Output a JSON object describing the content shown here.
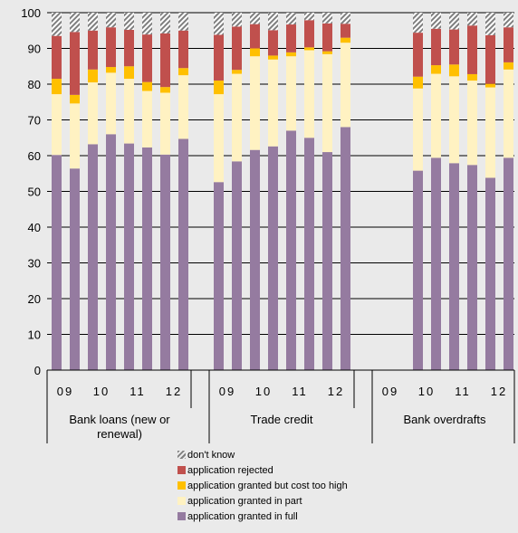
{
  "chart_data": {
    "type": "bar",
    "stacked": true,
    "ylim": [
      0,
      100
    ],
    "yticks": [
      0,
      10,
      20,
      30,
      40,
      50,
      60,
      70,
      80,
      90,
      100
    ],
    "grid": true,
    "legend_position": "bottom",
    "groups": [
      {
        "name": "Bank loans (new or renewal)",
        "name_lines": [
          "Bank loans (new or",
          "renewal)"
        ],
        "year_labels": [
          "09",
          "10",
          "11",
          "12"
        ],
        "bars": [
          [
            60.2,
            17.0,
            4.3,
            12.0,
            6.5
          ],
          [
            56.4,
            18.2,
            2.4,
            17.6,
            5.4
          ],
          [
            63.2,
            17.3,
            3.6,
            10.9,
            5.0
          ],
          [
            66.0,
            17.2,
            1.6,
            11.1,
            4.1
          ],
          [
            63.4,
            18.1,
            3.5,
            10.2,
            4.8
          ],
          [
            62.3,
            15.8,
            2.5,
            13.3,
            6.1
          ],
          [
            60.3,
            17.3,
            1.6,
            15.0,
            5.8
          ],
          [
            64.7,
            17.8,
            2.0,
            10.5,
            5.0
          ]
        ]
      },
      {
        "name": "Trade credit",
        "name_lines": [
          "Trade credit"
        ],
        "year_labels": [
          "09",
          "10",
          "11",
          "12"
        ],
        "bars": [
          [
            52.6,
            24.6,
            3.8,
            12.8,
            6.2
          ],
          [
            58.4,
            24.5,
            1.1,
            12.1,
            3.9
          ],
          [
            61.6,
            26.2,
            2.2,
            6.8,
            3.2
          ],
          [
            62.6,
            24.3,
            1.1,
            7.1,
            4.9
          ],
          [
            67.0,
            20.8,
            1.1,
            7.8,
            3.3
          ],
          [
            65.0,
            24.5,
            0.8,
            7.6,
            2.1
          ],
          [
            61.0,
            27.4,
            0.8,
            7.8,
            3.0
          ],
          [
            68.0,
            23.6,
            1.4,
            3.9,
            3.1
          ]
        ]
      },
      {
        "name": "Bank overdrafts",
        "name_lines": [
          "Bank overdrafts"
        ],
        "year_labels": [
          "09",
          "10",
          "11",
          "12"
        ],
        "bars": [
          null,
          null,
          [
            55.8,
            23.0,
            3.3,
            12.3,
            5.6
          ],
          [
            59.4,
            23.5,
            2.4,
            10.2,
            4.5
          ],
          [
            57.9,
            24.3,
            3.3,
            9.8,
            4.7
          ],
          [
            57.4,
            23.6,
            1.8,
            13.6,
            3.6
          ],
          [
            53.8,
            25.3,
            1.0,
            13.6,
            6.3
          ],
          [
            59.4,
            24.7,
            2.0,
            9.8,
            4.1
          ]
        ]
      }
    ],
    "series": [
      {
        "name": "application granted in full",
        "color": "#957ba0"
      },
      {
        "name": "application granted in part",
        "color": "#fff2c2"
      },
      {
        "name": "application granted but cost too high",
        "color": "#ffc000"
      },
      {
        "name": "application rejected",
        "color": "#c0504d"
      },
      {
        "name": "don't know",
        "color": "#7f7f7f",
        "pattern": "hatched"
      }
    ],
    "legend_order": [
      4,
      3,
      2,
      1,
      0
    ]
  }
}
